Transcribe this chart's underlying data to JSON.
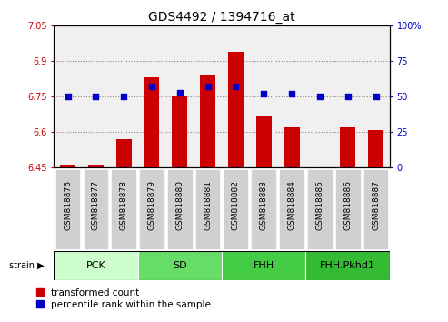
{
  "title": "GDS4492 / 1394716_at",
  "samples": [
    "GSM818876",
    "GSM818877",
    "GSM818878",
    "GSM818879",
    "GSM818880",
    "GSM818881",
    "GSM818882",
    "GSM818883",
    "GSM818884",
    "GSM818885",
    "GSM818886",
    "GSM818887"
  ],
  "transformed_counts": [
    6.46,
    6.46,
    6.57,
    6.83,
    6.75,
    6.84,
    6.94,
    6.67,
    6.62,
    6.45,
    6.62,
    6.61
  ],
  "percentile_ranks": [
    50,
    50,
    50,
    57,
    53,
    57,
    57,
    52,
    52,
    50,
    50,
    50
  ],
  "ylim_left": [
    6.45,
    7.05
  ],
  "ylim_right": [
    0,
    100
  ],
  "yticks_left": [
    6.45,
    6.6,
    6.75,
    6.9,
    7.05
  ],
  "yticks_right": [
    0,
    25,
    50,
    75,
    100
  ],
  "bar_color": "#cc0000",
  "dot_color": "#0000cc",
  "bar_width": 0.55,
  "group_defs": [
    {
      "label": "PCK",
      "start": 0,
      "end": 3,
      "color": "#ccffcc"
    },
    {
      "label": "SD",
      "start": 3,
      "end": 6,
      "color": "#66dd66"
    },
    {
      "label": "FHH",
      "start": 6,
      "end": 9,
      "color": "#44cc44"
    },
    {
      "label": "FHH.Pkhd1",
      "start": 9,
      "end": 12,
      "color": "#33bb33"
    }
  ],
  "legend_items": [
    {
      "label": "transformed count",
      "color": "#cc0000"
    },
    {
      "label": "percentile rank within the sample",
      "color": "#0000cc"
    }
  ],
  "tick_bg_color": "#d0d0d0",
  "plot_bg_color": "#f0f0f0",
  "title_fontsize": 10,
  "tick_fontsize": 6.5,
  "group_fontsize": 8,
  "axis_fontsize": 7
}
